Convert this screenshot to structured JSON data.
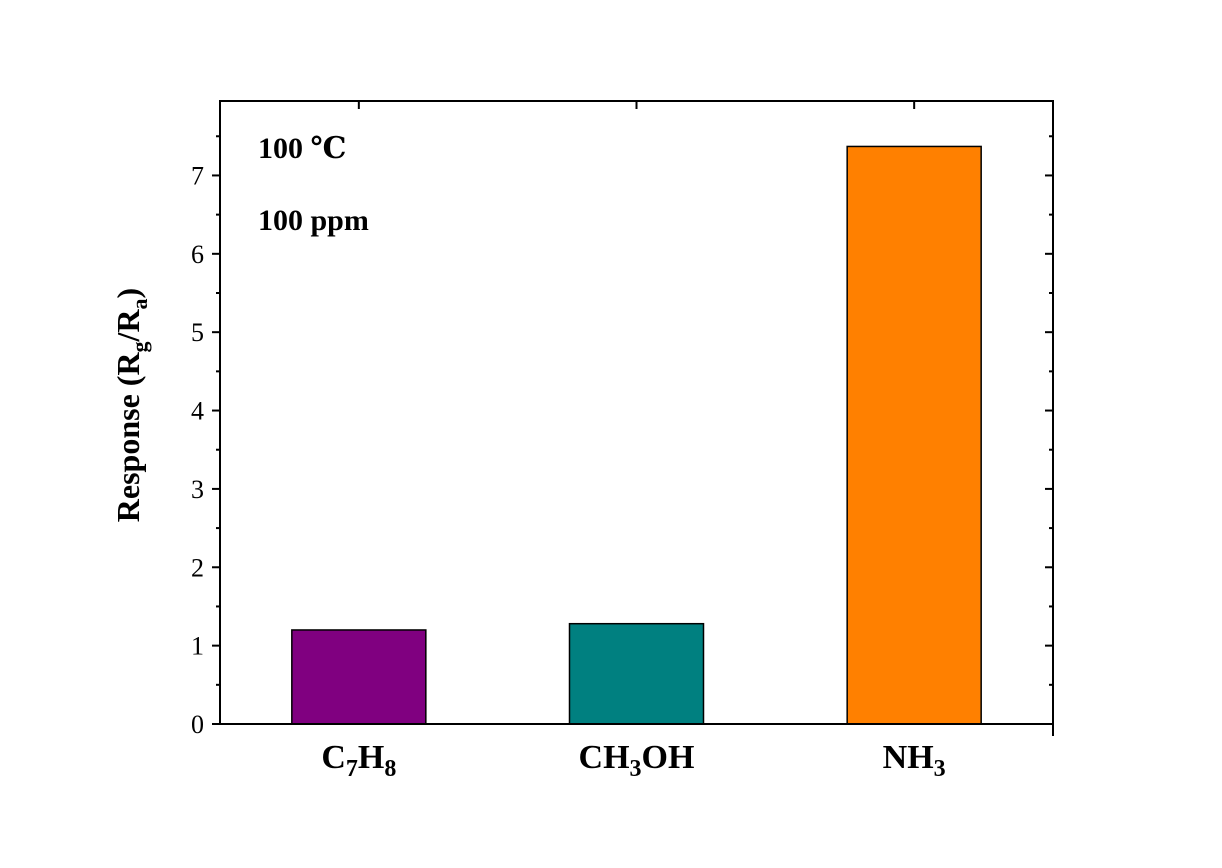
{
  "chart_data": {
    "type": "bar",
    "categories": [
      {
        "parts": [
          {
            "t": "C"
          },
          {
            "t": "7",
            "sub": true
          },
          {
            "t": "H"
          },
          {
            "t": "8",
            "sub": true
          }
        ]
      },
      {
        "parts": [
          {
            "t": "CH"
          },
          {
            "t": "3",
            "sub": true
          },
          {
            "t": "OH"
          }
        ]
      },
      {
        "parts": [
          {
            "t": "NH"
          },
          {
            "t": "3",
            "sub": true
          }
        ]
      }
    ],
    "values": [
      1.2,
      1.28,
      7.37
    ],
    "colors": [
      "#800080",
      "#008080",
      "#ff8000"
    ],
    "ylabel": {
      "parts": [
        {
          "t": "Response (R"
        },
        {
          "t": "g",
          "sub": true
        },
        {
          "t": "/R"
        },
        {
          "t": "a",
          "sub": true
        },
        {
          "t": ")"
        }
      ]
    },
    "xlabel": "",
    "title": "",
    "ylim": [
      0,
      7.95
    ],
    "yticks": [
      0,
      1,
      2,
      3,
      4,
      5,
      6,
      7
    ],
    "grid": false,
    "annotations": [
      "100 ℃",
      "100 ppm"
    ]
  }
}
